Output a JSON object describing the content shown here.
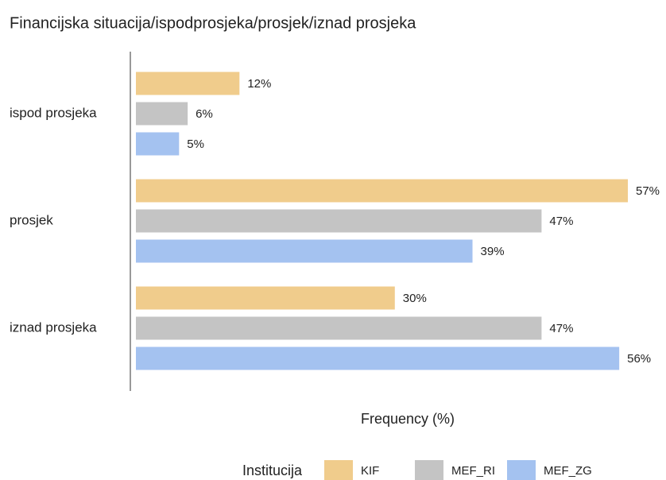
{
  "chart_data": {
    "type": "bar",
    "orientation": "horizontal",
    "title": "Financijska situacija/ispodprosjeka/prosjek/iznad prosjeka",
    "x_label": "Frequency (%)",
    "legend_title": "Institucija",
    "categories": [
      "ispod prosjeka",
      "prosjek",
      "iznad prosjeka"
    ],
    "series": [
      {
        "name": "KIF",
        "color": "#f0cc8c",
        "values": [
          12,
          57,
          30
        ],
        "value_labels": [
          "12%",
          "57%",
          "30%"
        ]
      },
      {
        "name": "MEF_RI",
        "color": "#c4c4c4",
        "values": [
          6,
          47,
          47
        ],
        "value_labels": [
          "6%",
          "47%",
          "47%"
        ]
      },
      {
        "name": "MEF_ZG",
        "color": "#a4c2f0",
        "values": [
          5,
          39,
          56
        ],
        "value_labels": [
          "5%",
          "39%",
          "56%"
        ]
      }
    ]
  }
}
